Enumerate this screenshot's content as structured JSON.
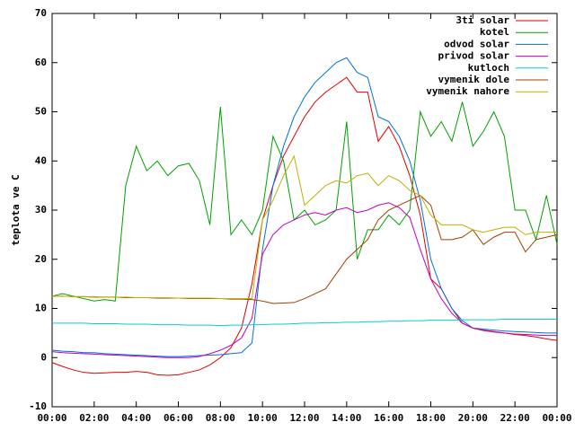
{
  "chart_data": {
    "type": "line",
    "ylabel": "teplota ve C",
    "x": [
      0,
      0.5,
      1,
      1.5,
      2,
      2.5,
      3,
      3.5,
      4,
      4.5,
      5,
      5.5,
      6,
      6.5,
      7,
      7.5,
      8,
      8.5,
      9,
      9.5,
      10,
      10.5,
      11,
      11.5,
      12,
      12.5,
      13,
      13.5,
      14,
      14.5,
      15,
      15.5,
      16,
      16.5,
      17,
      17.5,
      18,
      18.5,
      19,
      19.5,
      20,
      20.5,
      21,
      21.5,
      22,
      22.5,
      23,
      23.5,
      24
    ],
    "xlim": [
      0,
      24
    ],
    "xticks": [
      {
        "value": 0,
        "label": "00:00"
      },
      {
        "value": 2,
        "label": "02:00"
      },
      {
        "value": 4,
        "label": "04:00"
      },
      {
        "value": 6,
        "label": "06:00"
      },
      {
        "value": 8,
        "label": "08:00"
      },
      {
        "value": 10,
        "label": "10:00"
      },
      {
        "value": 12,
        "label": "12:00"
      },
      {
        "value": 14,
        "label": "14:00"
      },
      {
        "value": 16,
        "label": "16:00"
      },
      {
        "value": 18,
        "label": "18:00"
      },
      {
        "value": 20,
        "label": "20:00"
      },
      {
        "value": 22,
        "label": "22:00"
      },
      {
        "value": 24,
        "label": "00:00"
      }
    ],
    "ylim": [
      -10,
      70
    ],
    "yticks": [
      -10,
      0,
      10,
      20,
      30,
      40,
      50,
      60,
      70
    ],
    "legend": "upper right",
    "series": [
      {
        "name": "3ti solar",
        "color": "#e00000",
        "values": [
          -1,
          -1.8,
          -2.5,
          -3,
          -3.2,
          -3.1,
          -3,
          -3,
          -2.8,
          -3,
          -3.5,
          -3.6,
          -3.5,
          -3,
          -2.5,
          -1.5,
          0,
          2,
          6,
          15,
          28,
          35,
          41,
          45,
          49,
          52,
          54,
          55.5,
          57,
          54,
          54,
          44,
          47,
          43,
          37,
          29,
          16,
          14,
          10,
          7,
          6,
          5.5,
          5.2,
          5,
          4.7,
          4.5,
          4.2,
          3.8,
          3.5
        ]
      },
      {
        "name": "kotel",
        "color": "#00a000",
        "values": [
          12.5,
          13,
          12.5,
          12,
          11.5,
          11.8,
          11.5,
          35,
          43,
          38,
          40,
          37,
          39,
          39.5,
          36,
          27,
          51,
          25,
          28,
          25,
          30,
          45,
          40,
          28,
          30,
          27,
          28,
          30,
          48,
          20,
          26,
          26,
          29,
          27,
          30,
          50,
          45,
          48,
          44,
          52,
          43,
          46,
          50,
          45,
          30,
          30,
          24,
          33,
          23
        ]
      },
      {
        "name": "odvod solar",
        "color": "#0070e0",
        "values": [
          1.5,
          1.3,
          1.2,
          1,
          1,
          0.8,
          0.7,
          0.6,
          0.5,
          0.4,
          0.3,
          0.2,
          0.2,
          0.3,
          0.4,
          0.5,
          0.6,
          0.8,
          1,
          3,
          22,
          35,
          43,
          49,
          53,
          56,
          58,
          60,
          61,
          58,
          57,
          49,
          48,
          45,
          40,
          32,
          20,
          14,
          10,
          7.5,
          6,
          5.8,
          5.6,
          5.4,
          5.3,
          5.2,
          5.1,
          5,
          5
        ]
      },
      {
        "name": "privod solar",
        "color": "#c000c0",
        "values": [
          1.2,
          1,
          0.9,
          0.8,
          0.7,
          0.6,
          0.5,
          0.4,
          0.3,
          0.2,
          0.1,
          0,
          0,
          0,
          0.2,
          0.8,
          1.5,
          2.5,
          4,
          8,
          21,
          25,
          27,
          28,
          29,
          29.5,
          29,
          30,
          30.5,
          29.5,
          30,
          31,
          31.5,
          30.5,
          28.5,
          22,
          16,
          12,
          9,
          7,
          6,
          5.6,
          5.3,
          5,
          4.8,
          4.7,
          4.6,
          4.5,
          4.5
        ]
      },
      {
        "name": "kutloch",
        "color": "#00d0d0",
        "values": [
          7,
          7,
          7,
          7,
          6.9,
          6.9,
          6.9,
          6.8,
          6.8,
          6.8,
          6.7,
          6.7,
          6.7,
          6.6,
          6.6,
          6.6,
          6.5,
          6.6,
          6.6,
          6.7,
          6.7,
          6.8,
          6.8,
          6.9,
          7,
          7,
          7.1,
          7.1,
          7.2,
          7.2,
          7.3,
          7.3,
          7.4,
          7.4,
          7.5,
          7.5,
          7.6,
          7.6,
          7.6,
          7.7,
          7.7,
          7.7,
          7.7,
          7.8,
          7.8,
          7.8,
          7.8,
          7.8,
          7.8
        ]
      },
      {
        "name": "vymenik dole",
        "color": "#a04000",
        "values": [
          12.5,
          12.5,
          12.4,
          12.4,
          12.3,
          12.3,
          12.3,
          12.2,
          12.2,
          12.2,
          12.1,
          12.1,
          12.1,
          12,
          12,
          12,
          12,
          11.9,
          11.9,
          11.8,
          11.5,
          11,
          11.1,
          11.2,
          12,
          13,
          14,
          17,
          20,
          22,
          24,
          28,
          30,
          31,
          32,
          33,
          31,
          24,
          24,
          24.5,
          26,
          23,
          24.5,
          25.5,
          25.5,
          21.5,
          24,
          24.5,
          25
        ]
      },
      {
        "name": "vymenik nahore",
        "color": "#c0b000",
        "values": [
          12.5,
          12.5,
          12.4,
          12.4,
          12.4,
          12.3,
          12.3,
          12.3,
          12.2,
          12.2,
          12.2,
          12.2,
          12.1,
          12.1,
          12.1,
          12.1,
          12,
          12,
          12,
          12,
          28,
          32,
          37,
          41,
          31,
          33,
          35,
          36,
          35.5,
          37,
          37.5,
          35,
          37,
          36,
          34,
          33,
          29,
          27,
          27,
          27,
          26,
          25.5,
          26,
          26.5,
          26.5,
          25,
          25.5,
          25.5,
          25.5
        ]
      }
    ]
  }
}
